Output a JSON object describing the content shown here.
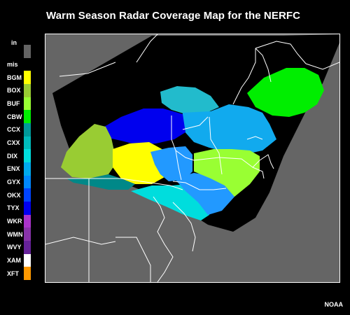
{
  "title": "Warm Season Radar Coverage Map for the NERFC",
  "credit": "NOAA",
  "legend": {
    "unit": "in",
    "items": [
      {
        "label": "",
        "color": "#646464"
      },
      {
        "label": "mis",
        "color": "#000000"
      },
      {
        "label": "BGM",
        "color": "#ffff00"
      },
      {
        "label": "BOX",
        "color": "#99cc33"
      },
      {
        "label": "BUF",
        "color": "#99ff33"
      },
      {
        "label": "CBW",
        "color": "#00ee00"
      },
      {
        "label": "CCX",
        "color": "#009999"
      },
      {
        "label": "CXX",
        "color": "#00bbbb"
      },
      {
        "label": "DIX",
        "color": "#00dddd"
      },
      {
        "label": "ENX",
        "color": "#00aaee"
      },
      {
        "label": "GYX",
        "color": "#0088ff"
      },
      {
        "label": "OKX",
        "color": "#0044ff"
      },
      {
        "label": "TYX",
        "color": "#0000ee"
      },
      {
        "label": "WKR",
        "color": "#aa33cc"
      },
      {
        "label": "WMN",
        "color": "#8833aa"
      },
      {
        "label": "WVY",
        "color": "#66229a"
      },
      {
        "label": "XAM",
        "color": "#ffffff"
      },
      {
        "label": "XFT",
        "color": "#ff9900"
      }
    ]
  },
  "map": {
    "background_color": "#656565",
    "zones": [
      {
        "label": "mis",
        "color": "#000000"
      },
      {
        "label": "CBW",
        "color": "#00ee00"
      },
      {
        "label": "CXX",
        "color": "#22bbcc"
      },
      {
        "label": "TYX",
        "color": "#0000ee"
      },
      {
        "label": "ENX",
        "color": "#11aaee"
      },
      {
        "label": "BOX",
        "color": "#99cc33"
      },
      {
        "label": "BGM",
        "color": "#ffff00"
      },
      {
        "label": "CCX",
        "color": "#008888"
      },
      {
        "label": "GYX",
        "color": "#2299ff"
      },
      {
        "label": "DIX",
        "color": "#00dddd"
      },
      {
        "label": "BUF",
        "color": "#99ff33"
      }
    ]
  }
}
